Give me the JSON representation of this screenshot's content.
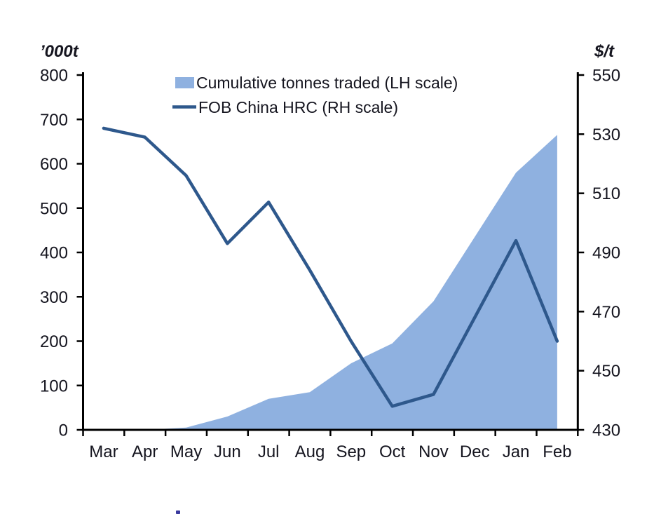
{
  "chart_data": {
    "type": "combo",
    "categories": [
      "Mar",
      "Apr",
      "May",
      "Jun",
      "Jul",
      "Aug",
      "Sep",
      "Oct",
      "Nov",
      "Dec",
      "Jan",
      "Feb"
    ],
    "series": [
      {
        "name": "Cumulative tonnes traded (LH scale)",
        "type": "area",
        "axis": "left",
        "color": "#8FB1E0",
        "values": [
          0,
          0,
          5,
          30,
          70,
          85,
          150,
          195,
          290,
          435,
          580,
          665
        ]
      },
      {
        "name": "FOB China HRC (RH scale)",
        "type": "line",
        "axis": "right",
        "color": "#2E588C",
        "values": [
          532,
          529,
          516,
          493,
          507,
          484,
          460,
          438,
          442,
          468,
          494,
          460
        ]
      }
    ],
    "left_ylabel": "’000t",
    "right_ylabel": "$/t",
    "left_ylim": [
      0,
      800
    ],
    "right_ylim": [
      430,
      550
    ],
    "left_ticks": [
      800,
      700,
      600,
      500,
      400,
      300,
      200,
      100,
      0
    ],
    "right_ticks": [
      550,
      530,
      510,
      490,
      470,
      450,
      430
    ],
    "grid": false,
    "legend_position": "top-center",
    "axis_color": "#000000",
    "text_color": "#15151f"
  }
}
